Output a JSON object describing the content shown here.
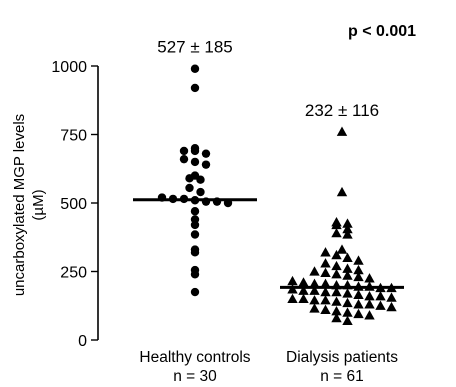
{
  "chart_data": {
    "type": "scatter",
    "ylabel_line1": "uncarboxylated MGP levels",
    "ylabel_line2": "(µM)",
    "ylim": [
      0,
      1000
    ],
    "yticks": [
      "0",
      "250",
      "500",
      "750",
      "1000"
    ],
    "yticks_values": [
      0,
      250,
      500,
      750,
      1000
    ],
    "p_value": "p < 0.001",
    "grid": false,
    "groups": [
      {
        "label": "Healthy controls",
        "n_label": "n = 30",
        "marker": "circle",
        "annotation": "527 ± 185",
        "median": 512,
        "values": [
          990,
          920,
          700,
          690,
          690,
          680,
          660,
          650,
          640,
          600,
          590,
          585,
          555,
          540,
          520,
          515,
          515,
          510,
          505,
          505,
          500,
          470,
          440,
          420,
          385,
          330,
          320,
          255,
          240,
          175
        ]
      },
      {
        "label": "Dialysis patients",
        "n_label": "n = 61",
        "marker": "triangle",
        "annotation": "232 ± 116",
        "median": 192,
        "values": [
          760,
          540,
          430,
          425,
          420,
          405,
          390,
          385,
          330,
          320,
          310,
          300,
          290,
          280,
          270,
          260,
          255,
          250,
          245,
          240,
          235,
          230,
          225,
          215,
          210,
          205,
          205,
          200,
          200,
          195,
          195,
          190,
          190,
          185,
          180,
          180,
          175,
          175,
          170,
          165,
          160,
          160,
          155,
          150,
          150,
          145,
          145,
          140,
          135,
          130,
          130,
          125,
          120,
          115,
          110,
          105,
          100,
          95,
          90,
          80,
          70
        ]
      }
    ]
  }
}
